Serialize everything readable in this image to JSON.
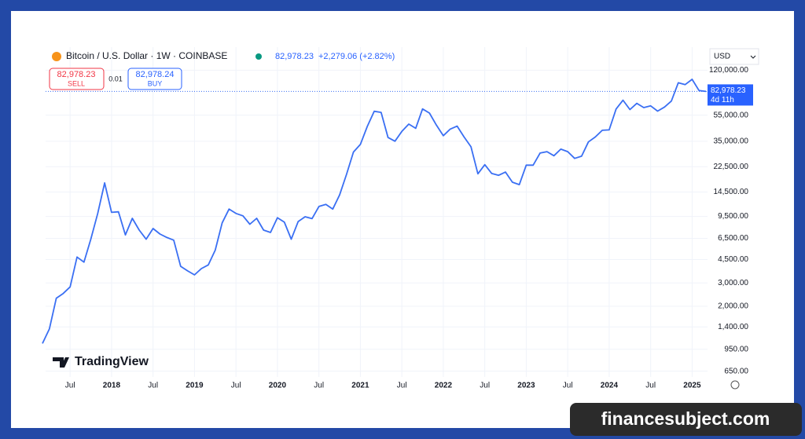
{
  "header": {
    "symbol": "Bitcoin / U.S. Dollar · 1W · COINBASE",
    "price": "82,978.23",
    "change": "+2,279.06 (+2.82%)",
    "sell_price": "82,978.23",
    "sell": "SELL",
    "spread": "0.01",
    "buy_price": "82,978.24",
    "buy": "BUY",
    "currency": "USD"
  },
  "logo": "TradingView",
  "watermark": "financesubject.com",
  "chart_data": {
    "type": "line",
    "log_scale": true,
    "grid": true,
    "color": "#3a6ff3",
    "last_price": {
      "value": 82978.23,
      "label": "82,978.23"
    },
    "countdown": "4d 11h",
    "xlim": [
      "2017-03",
      "2025-03"
    ],
    "xticks": [
      {
        "value": "2017-07",
        "label": "Jul"
      },
      {
        "value": "2018-01",
        "label": "2018"
      },
      {
        "value": "2018-07",
        "label": "Jul"
      },
      {
        "value": "2019-01",
        "label": "2019"
      },
      {
        "value": "2019-07",
        "label": "Jul"
      },
      {
        "value": "2020-01",
        "label": "2020"
      },
      {
        "value": "2020-07",
        "label": "Jul"
      },
      {
        "value": "2021-01",
        "label": "2021"
      },
      {
        "value": "2021-07",
        "label": "Jul"
      },
      {
        "value": "2022-01",
        "label": "2022"
      },
      {
        "value": "2022-07",
        "label": "Jul"
      },
      {
        "value": "2023-01",
        "label": "2023"
      },
      {
        "value": "2023-07",
        "label": "Jul"
      },
      {
        "value": "2024-01",
        "label": "2024"
      },
      {
        "value": "2024-07",
        "label": "Jul"
      },
      {
        "value": "2025-01",
        "label": "2025"
      }
    ],
    "ylim": [
      520,
      140000
    ],
    "yticks": [
      {
        "value": 650,
        "label": "650.00"
      },
      {
        "value": 950,
        "label": "950.00"
      },
      {
        "value": 1400,
        "label": "1,400.00"
      },
      {
        "value": 2000,
        "label": "2,000.00"
      },
      {
        "value": 3000,
        "label": "3,000.00"
      },
      {
        "value": 4500,
        "label": "4,500.00"
      },
      {
        "value": 6500,
        "label": "6,500.00"
      },
      {
        "value": 9500,
        "label": "9,500.00"
      },
      {
        "value": 14500,
        "label": "14,500.00"
      },
      {
        "value": 22500,
        "label": "22,500.00"
      },
      {
        "value": 35000,
        "label": "35,000.00"
      },
      {
        "value": 55000,
        "label": "55,000.00"
      },
      {
        "value": 120000,
        "label": "120,000.00"
      }
    ],
    "x": [
      "2017-03",
      "2017-04",
      "2017-05",
      "2017-06",
      "2017-07",
      "2017-08",
      "2017-09",
      "2017-10",
      "2017-11",
      "2017-12",
      "2018-01",
      "2018-02",
      "2018-03",
      "2018-04",
      "2018-05",
      "2018-06",
      "2018-07",
      "2018-08",
      "2018-09",
      "2018-10",
      "2018-11",
      "2018-12",
      "2019-01",
      "2019-02",
      "2019-03",
      "2019-04",
      "2019-05",
      "2019-06",
      "2019-07",
      "2019-08",
      "2019-09",
      "2019-10",
      "2019-11",
      "2019-12",
      "2020-01",
      "2020-02",
      "2020-03",
      "2020-04",
      "2020-05",
      "2020-06",
      "2020-07",
      "2020-08",
      "2020-09",
      "2020-10",
      "2020-11",
      "2020-12",
      "2021-01",
      "2021-02",
      "2021-03",
      "2021-04",
      "2021-05",
      "2021-06",
      "2021-07",
      "2021-08",
      "2021-09",
      "2021-10",
      "2021-11",
      "2021-12",
      "2022-01",
      "2022-02",
      "2022-03",
      "2022-04",
      "2022-05",
      "2022-06",
      "2022-07",
      "2022-08",
      "2022-09",
      "2022-10",
      "2022-11",
      "2022-12",
      "2023-01",
      "2023-02",
      "2023-03",
      "2023-04",
      "2023-05",
      "2023-06",
      "2023-07",
      "2023-08",
      "2023-09",
      "2023-10",
      "2023-11",
      "2023-12",
      "2024-01",
      "2024-02",
      "2024-03",
      "2024-04",
      "2024-05",
      "2024-06",
      "2024-07",
      "2024-08",
      "2024-09",
      "2024-10",
      "2024-11",
      "2024-12",
      "2025-01",
      "2025-02",
      "2025-03"
    ],
    "values": [
      1050,
      1350,
      2300,
      2500,
      2800,
      4700,
      4300,
      6400,
      10000,
      17000,
      10200,
      10300,
      6900,
      9200,
      7500,
      6400,
      7700,
      7000,
      6600,
      6300,
      4000,
      3700,
      3450,
      3850,
      4100,
      5300,
      8500,
      10800,
      10000,
      9600,
      8300,
      9200,
      7500,
      7200,
      9300,
      8600,
      6400,
      8700,
      9450,
      9150,
      11300,
      11700,
      10800,
      13800,
      19700,
      29000,
      33100,
      45200,
      58800,
      57700,
      37300,
      35000,
      41500,
      47100,
      43800,
      61300,
      57000,
      46300,
      38500,
      43200,
      45500,
      37700,
      31800,
      19900,
      23300,
      20000,
      19400,
      20500,
      17200,
      16500,
      23100,
      23100,
      28500,
      29200,
      27200,
      30500,
      29200,
      26000,
      27000,
      34600,
      37700,
      42300,
      42600,
      61200,
      71300,
      60600,
      67500,
      62700,
      64600,
      59000,
      63300,
      70200,
      96400,
      93400,
      102400,
      84300,
      82978.23
    ]
  }
}
